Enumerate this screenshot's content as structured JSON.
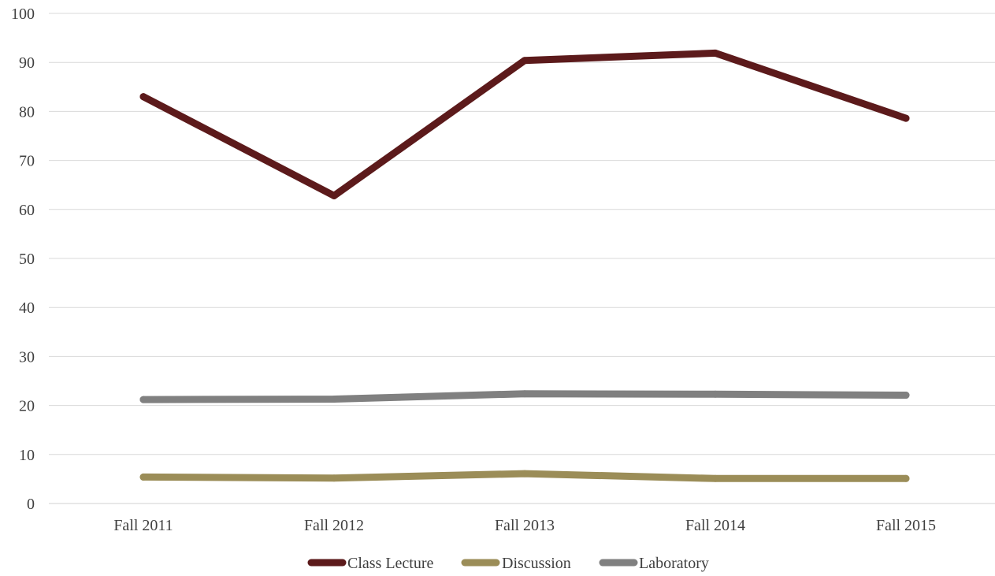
{
  "chart_data": {
    "type": "line",
    "title": "",
    "xlabel": "",
    "ylabel": "",
    "categories": [
      "Fall 2011",
      "Fall 2012",
      "Fall 2013",
      "Fall 2014",
      "Fall 2015"
    ],
    "ylim": [
      0,
      100
    ],
    "yticks": [
      0,
      10,
      20,
      30,
      40,
      50,
      60,
      70,
      80,
      90,
      100
    ],
    "grid": true,
    "legend_position": "bottom",
    "series": [
      {
        "name": "Class Lecture",
        "color": "#5c1a1b",
        "values": [
          83,
          62.8,
          90.4,
          91.9,
          78.6
        ]
      },
      {
        "name": "Discussion",
        "color": "#9b8d58",
        "values": [
          5.4,
          5.2,
          6.1,
          5.1,
          5.1
        ]
      },
      {
        "name": "Laboratory",
        "color": "#808080",
        "values": [
          21.2,
          21.3,
          22.4,
          22.3,
          22.1
        ]
      }
    ]
  }
}
